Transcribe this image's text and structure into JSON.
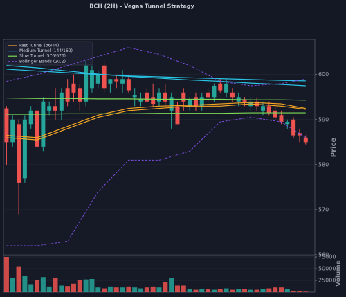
{
  "chart_data": {
    "type": "candlestick",
    "title": "BCH (2H) - Vegas Tunnel Strategy",
    "ylabel": "Price",
    "volume_label": "Volume",
    "ylim": [
      560,
      607.8
    ],
    "yticks": [
      560,
      570,
      580,
      590,
      600
    ],
    "volume_ylim": [
      0,
      78000
    ],
    "volume_yticks": [
      25000,
      50000,
      75000
    ],
    "up_color": "#26a69a",
    "down_color": "#ef5350",
    "grid": true,
    "legend": "upper left",
    "x": [
      0,
      1,
      2,
      3,
      4,
      5,
      6,
      7,
      8,
      9,
      10,
      11,
      12,
      13,
      14,
      15,
      16,
      17,
      18,
      19,
      20,
      21,
      22,
      23,
      24,
      25,
      26,
      27,
      28,
      29,
      30,
      31,
      32,
      33,
      34,
      35,
      36,
      37,
      38,
      39,
      40,
      41,
      42,
      43,
      44,
      45,
      46,
      47,
      48,
      49
    ],
    "xlim": [
      -0.5,
      50.5
    ],
    "open": [
      592.5,
      585,
      589,
      577,
      589,
      592,
      584,
      592,
      593,
      592,
      597,
      598,
      597,
      594,
      597,
      598,
      602,
      598,
      599,
      598,
      599,
      595,
      594,
      596,
      595,
      594,
      596,
      592,
      593,
      596,
      593,
      595,
      593,
      596,
      595,
      598,
      596,
      596,
      594,
      594.5,
      593,
      594,
      592,
      593,
      592,
      591,
      589,
      590,
      587,
      586
    ],
    "high": [
      593,
      591,
      590,
      591,
      593,
      593,
      595,
      594,
      597,
      597,
      599,
      600,
      598,
      603,
      602,
      601,
      603,
      599,
      600,
      601,
      600,
      597,
      596,
      597,
      598,
      597,
      598,
      596,
      594,
      597,
      595,
      596,
      596,
      597,
      598,
      599,
      599,
      597,
      596,
      595,
      595,
      595,
      594,
      594,
      593,
      592,
      590,
      590.5,
      588,
      586.5
    ],
    "low": [
      580,
      584,
      569,
      576,
      588,
      583,
      583,
      591,
      590,
      590,
      593,
      594,
      592,
      593,
      596,
      597,
      596,
      596,
      597,
      596,
      596,
      593,
      593,
      594,
      593,
      593,
      593,
      588,
      589,
      592,
      592,
      592,
      592,
      594,
      594,
      596,
      595,
      594,
      593,
      593,
      592,
      592,
      591,
      591,
      590,
      589,
      588,
      586,
      585,
      584.5
    ],
    "close": [
      585,
      590,
      576,
      590,
      592,
      584,
      594,
      593,
      592,
      596,
      594,
      596,
      594,
      602,
      601,
      600,
      597,
      599,
      598.5,
      599,
      596.5,
      595.5,
      594.5,
      594,
      593.5,
      596,
      594,
      595,
      589,
      594,
      594.5,
      593,
      595,
      595,
      597.5,
      596.5,
      598,
      595,
      595,
      594,
      594,
      593,
      593,
      591.5,
      590.5,
      589.5,
      589.5,
      586.5,
      586.5,
      585
    ],
    "volume": [
      75000,
      30000,
      55000,
      35000,
      17000,
      25000,
      32000,
      12000,
      30000,
      14000,
      13000,
      18000,
      25000,
      27000,
      28000,
      10000,
      8000,
      12000,
      10000,
      10000,
      12000,
      10000,
      8000,
      10000,
      12000,
      10000,
      22000,
      30000,
      14000,
      14000,
      6000,
      5000,
      6000,
      6000,
      5000,
      6000,
      8000,
      5000,
      6000,
      6000,
      5000,
      5000,
      6000,
      8000,
      10000,
      10000,
      6000,
      3000,
      2000,
      1000
    ],
    "lines": [
      {
        "name": "Fast Tunnel (36/44)",
        "color": "#f5a623",
        "dashed": false,
        "x": [
          0,
          5,
          10,
          15,
          20,
          25,
          30,
          35,
          40,
          45,
          49
        ],
        "values": [
          [
            586.5,
            586,
            588.5,
            591,
            592.5,
            593,
            593.2,
            593.5,
            593.8,
            593.5,
            592.5
          ],
          [
            586,
            585.5,
            588,
            590.5,
            592,
            592.5,
            593,
            593,
            593.5,
            593,
            592.3
          ]
        ]
      },
      {
        "name": "Medium Tunnel (144/169)",
        "color": "#29c5e6",
        "dashed": false,
        "x": [
          0,
          5,
          10,
          15,
          20,
          25,
          30,
          35,
          40,
          45,
          49
        ],
        "values": [
          [
            601.2,
            600.8,
            600.4,
            600,
            599.7,
            599.5,
            599.3,
            599.1,
            598.9,
            598.7,
            598.6
          ],
          [
            602,
            601.5,
            600.8,
            600.1,
            599.6,
            599.2,
            598.8,
            598.5,
            598.1,
            597.8,
            597.5
          ]
        ]
      },
      {
        "name": "Slow Tunnel (576/676)",
        "color": "#7ed957",
        "dashed": false,
        "x": [
          0,
          5,
          10,
          15,
          20,
          25,
          30,
          35,
          40,
          45,
          49
        ],
        "values": [
          [
            594.8,
            594.7,
            594.7,
            594.6,
            594.6,
            594.5,
            594.5,
            594.5,
            594.4,
            594.4,
            594.3
          ],
          [
            591.2,
            591.2,
            591.3,
            591.3,
            591.3,
            591.4,
            591.4,
            591.4,
            591.5,
            591.5,
            591.5
          ]
        ]
      },
      {
        "name": "Bollinger Bands (20,2)",
        "color": "#7b4fe0",
        "dashed": true,
        "x": [
          0,
          5,
          10,
          15,
          20,
          25,
          30,
          35,
          40,
          45,
          49
        ],
        "values": [
          [
            598.5,
            600,
            602,
            604,
            606,
            604.5,
            602,
            598.5,
            597.5,
            598,
            599
          ],
          [
            562,
            562,
            563,
            574,
            581,
            581,
            583,
            589.5,
            590.5,
            589.5,
            586
          ]
        ]
      }
    ]
  }
}
